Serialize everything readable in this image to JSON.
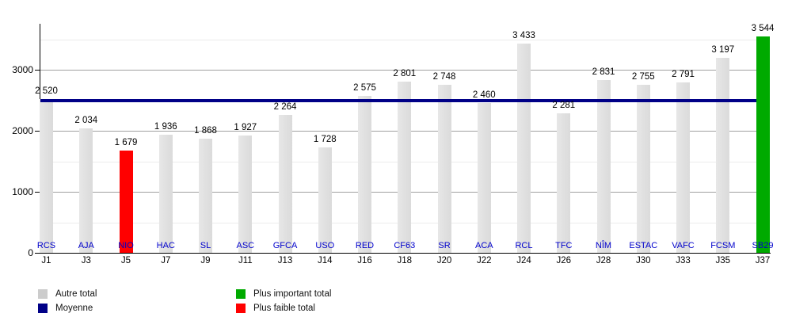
{
  "chart_data": {
    "type": "bar",
    "title": "",
    "xlabel": "",
    "ylabel": "",
    "categories": [
      "J1",
      "J3",
      "J5",
      "J7",
      "J9",
      "J11",
      "J13",
      "J14",
      "J16",
      "J18",
      "J20",
      "J22",
      "J24",
      "J26",
      "J28",
      "J30",
      "J33",
      "J35",
      "J37"
    ],
    "bar_labels": [
      "RCS",
      "AJA",
      "NIO",
      "HAC",
      "SL",
      "ASC",
      "GFCA",
      "USO",
      "RED",
      "CF63",
      "SR",
      "ACA",
      "RCL",
      "TFC",
      "NÎM",
      "ESTAC",
      "VAFC",
      "FCSM",
      "SB29"
    ],
    "values": [
      2520,
      2034,
      1679,
      1936,
      1868,
      1927,
      2264,
      1728,
      2575,
      2801,
      2748,
      2460,
      3433,
      2281,
      2831,
      2755,
      2791,
      3197,
      3544
    ],
    "value_labels": [
      "2 520",
      "2 034",
      "1 679",
      "1 936",
      "1 868",
      "1 927",
      "2 264",
      "1 728",
      "2 575",
      "2 801",
      "2 748",
      "2 460",
      "3 433",
      "2 281",
      "2 831",
      "2 755",
      "2 791",
      "3 197",
      "3 544"
    ],
    "min_index": 2,
    "max_index": 18,
    "average_line_value": 2493,
    "ylim": [
      0,
      3753
    ],
    "yticks": [
      0,
      1000,
      2000,
      3000
    ],
    "ytick_labels": [
      "0",
      "1000",
      "2000",
      "3000"
    ],
    "minor_gridlines": [
      500,
      1500,
      2500,
      3500
    ],
    "grid": "on",
    "legend_position": "bottom",
    "legend": [
      {
        "label": "Autre total",
        "color": "#cccccc"
      },
      {
        "label": "Moyenne",
        "color": "#000087"
      },
      {
        "label": "Plus important total",
        "color": "#00aa00"
      },
      {
        "label": "Plus faible total",
        "color": "#ff0000"
      }
    ],
    "colors": {
      "bar_default": "#e0e0e0",
      "bar_min": "#ff0000",
      "bar_max": "#00aa00",
      "average_line": "#000087",
      "bar_label_text": "#0000cc",
      "value_text": "#000000",
      "axis": "#000000",
      "gridline_major": "#a0a0a0",
      "gridline_minor": "#ececec"
    }
  }
}
